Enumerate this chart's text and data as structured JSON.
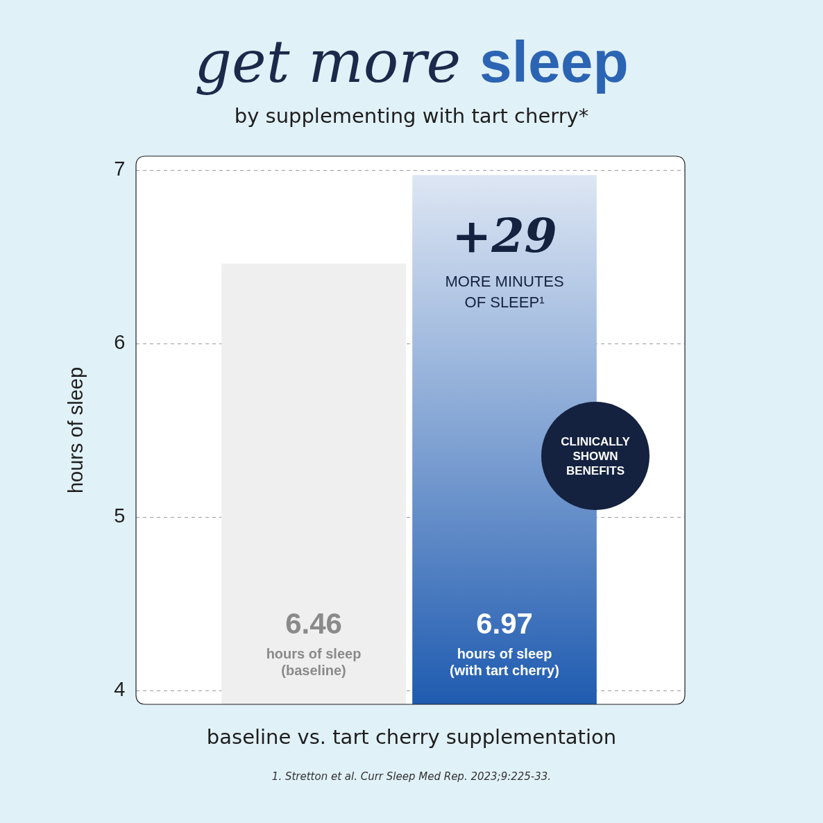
{
  "chart_data": {
    "type": "bar",
    "title": "get more sleep",
    "subtitle": "by supplementing with tart cherry*",
    "xlabel": "baseline vs. tart cherry supplementation",
    "ylabel": "hours of sleep",
    "categories": [
      "hours of sleep (baseline)",
      "hours of sleep (with tart cherry)"
    ],
    "values": [
      6.46,
      6.97
    ],
    "colors": [
      "#efefef",
      "#1f5bb0"
    ],
    "ylim": [
      3.92,
      7.08
    ],
    "yticks": [
      4,
      5,
      6,
      7
    ],
    "grid": "y",
    "tick_labels": "y",
    "data_labels": true,
    "annotations": [
      "+29",
      "MORE MINUTES OF SLEEP¹",
      "CLINICALLY SHOWN BENEFITS",
      "1. Stretton et al. Curr Sleep Med Rep. 2023;9:225-33."
    ]
  }
}
